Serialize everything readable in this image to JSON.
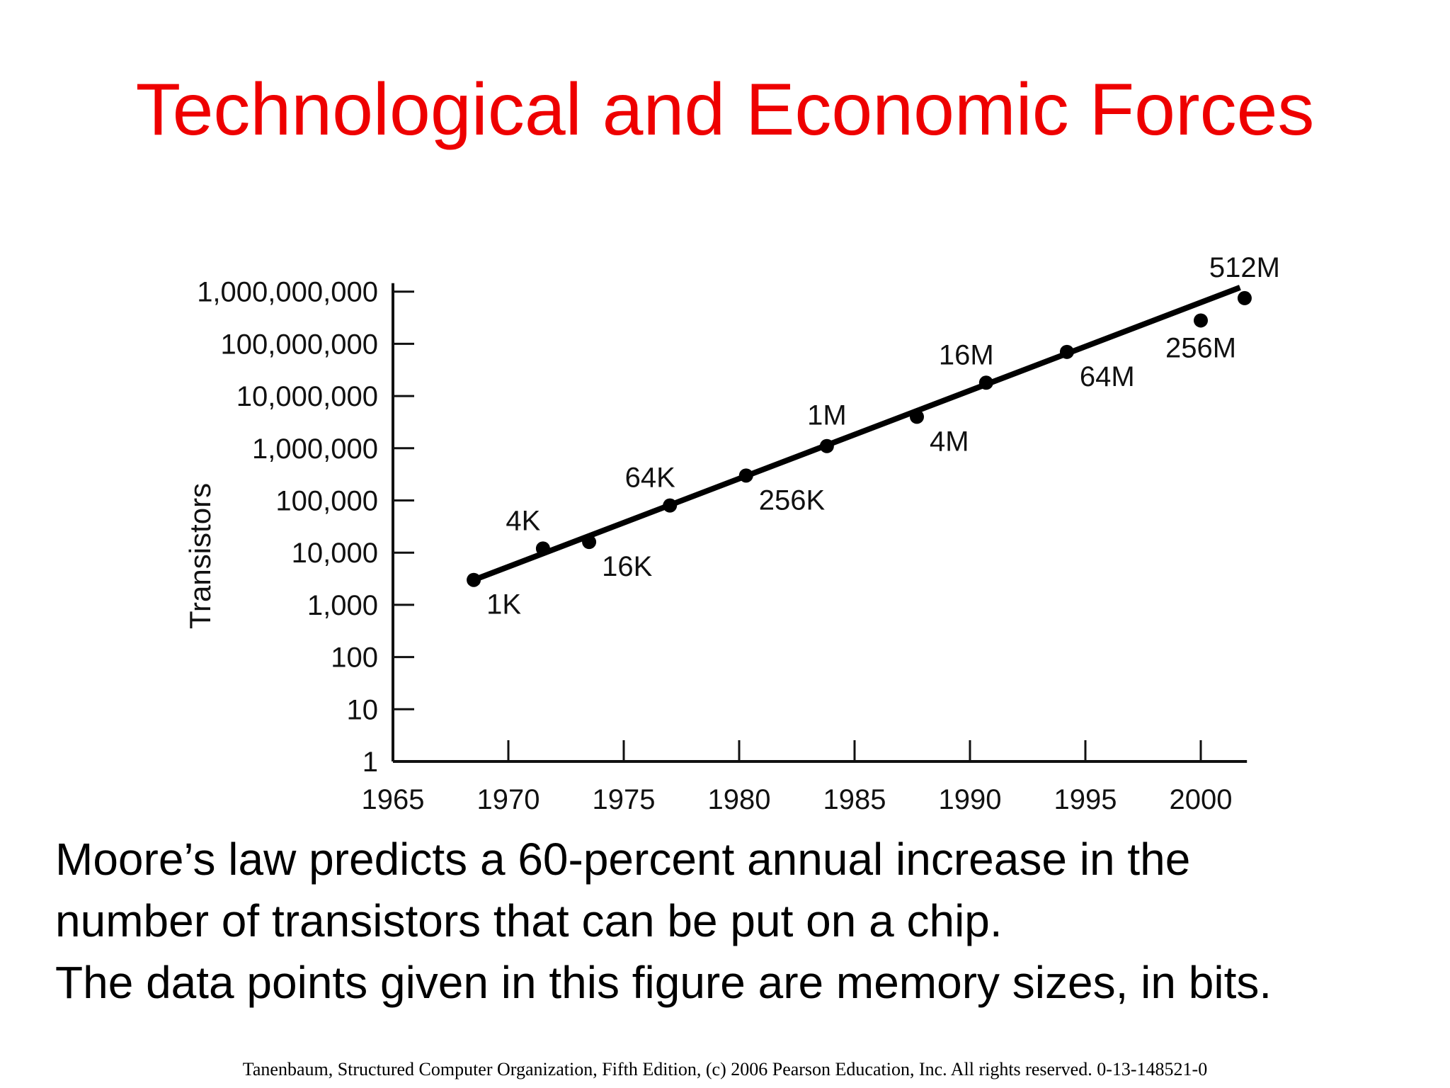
{
  "slide": {
    "title": "Technological and Economic Forces",
    "title_color": "#ee0000",
    "body_lines": [
      "Moore’s law predicts a 60-percent annual increase in the",
      "number of transistors that can be put on a chip.",
      "The data points given in this figure are memory sizes, in bits."
    ],
    "footer": "Tanenbaum, Structured Computer Organization, Fifth Edition, (c) 2006 Pearson Education, Inc. All rights reserved. 0-13-148521-0"
  },
  "chart_data": {
    "type": "scatter",
    "ylabel": "Transistors",
    "y_scale": "log",
    "xlim": [
      1965,
      2002
    ],
    "ylim": [
      1,
      1000000000
    ],
    "x_ticks": [
      "1965",
      "1970",
      "1975",
      "1980",
      "1985",
      "1990",
      "1995",
      "2000"
    ],
    "y_ticks": [
      {
        "value": 1,
        "label": "1"
      },
      {
        "value": 10,
        "label": "10"
      },
      {
        "value": 100,
        "label": "100"
      },
      {
        "value": 1000,
        "label": "1,000"
      },
      {
        "value": 10000,
        "label": "10,000"
      },
      {
        "value": 100000,
        "label": "100,000"
      },
      {
        "value": 1000000,
        "label": "1,000,000"
      },
      {
        "value": 10000000,
        "label": "10,000,000"
      },
      {
        "value": 100000000,
        "label": "100,000,000"
      },
      {
        "value": 1000000000,
        "label": "1,000,000,000"
      }
    ],
    "grid": false,
    "points": [
      {
        "x": 1968.5,
        "y": 3000,
        "label": "1K",
        "label_pos": "below-right"
      },
      {
        "x": 1971.5,
        "y": 12000,
        "label": "4K",
        "label_pos": "above-left"
      },
      {
        "x": 1973.5,
        "y": 16000,
        "label": "16K",
        "label_pos": "below-right"
      },
      {
        "x": 1977.0,
        "y": 80000,
        "label": "64K",
        "label_pos": "above-left"
      },
      {
        "x": 1980.3,
        "y": 300000,
        "label": "256K",
        "label_pos": "below-right"
      },
      {
        "x": 1983.8,
        "y": 1100000,
        "label": "1M",
        "label_pos": "above"
      },
      {
        "x": 1987.7,
        "y": 4000000,
        "label": "4M",
        "label_pos": "below-right"
      },
      {
        "x": 1990.7,
        "y": 18000000,
        "label": "16M",
        "label_pos": "above-left"
      },
      {
        "x": 1994.2,
        "y": 70000000,
        "label": "64M",
        "label_pos": "below-right"
      },
      {
        "x": 2000.0,
        "y": 280000000,
        "label": "256M",
        "label_pos": "below"
      },
      {
        "x": 2001.9,
        "y": 750000000,
        "label": "512M",
        "label_pos": "above"
      }
    ],
    "trend_line": [
      {
        "x": 1968.5,
        "y": 3000
      },
      {
        "x": 2001.7,
        "y": 1200000000
      }
    ]
  }
}
